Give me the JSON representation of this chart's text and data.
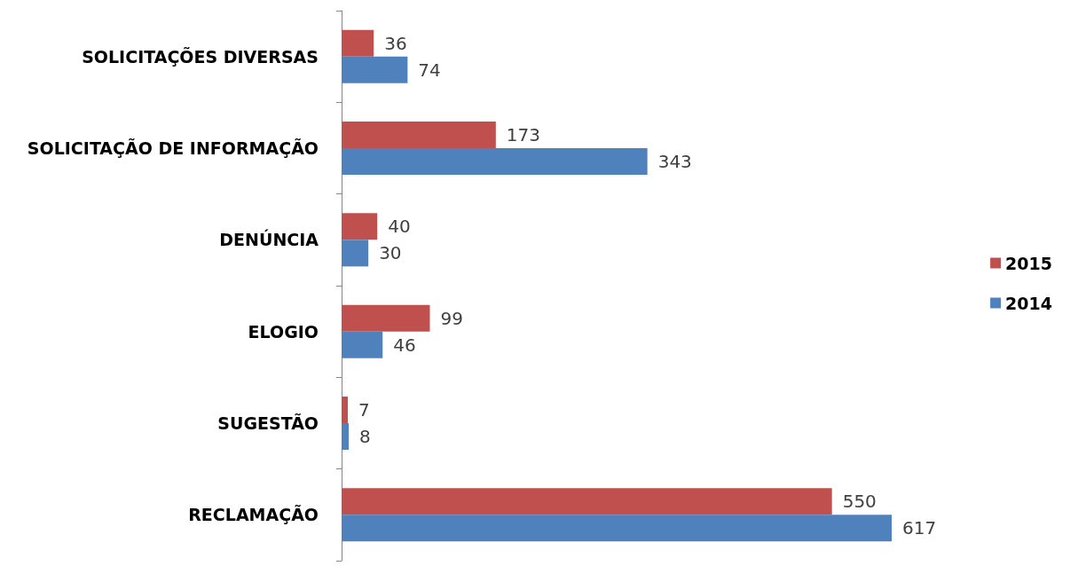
{
  "chart_data": {
    "type": "bar",
    "orientation": "horizontal",
    "categories": [
      "SOLICITAÇÕES DIVERSAS",
      "SOLICITAÇÃO DE INFORMAÇÃO",
      "DENÚNCIA",
      "ELOGIO",
      "SUGESTÃO",
      "RECLAMAÇÃO"
    ],
    "series": [
      {
        "name": "2015",
        "color": "#c0504d",
        "values": [
          36,
          173,
          40,
          99,
          7,
          550
        ]
      },
      {
        "name": "2014",
        "color": "#4f81bd",
        "values": [
          74,
          343,
          30,
          46,
          8,
          617
        ]
      }
    ],
    "data_labels": true,
    "legend": "right"
  }
}
